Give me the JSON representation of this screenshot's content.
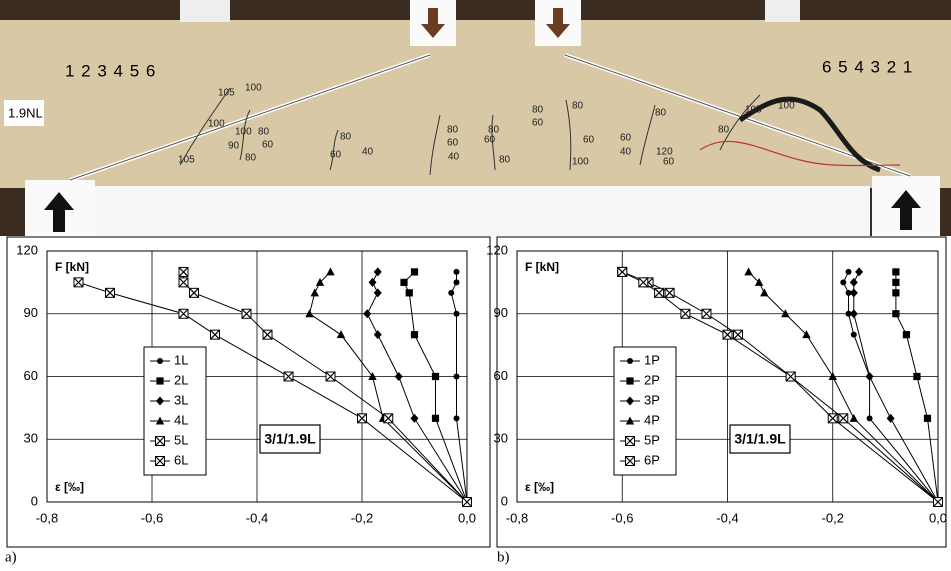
{
  "photo": {
    "left_gauges": "1 2 3 4 5 6",
    "right_gauges": "6 5 4 3 2 1",
    "specimen_label": "1.9NL",
    "crack_labels": [
      "105",
      "100",
      "100",
      "105",
      "100",
      "80",
      "90",
      "60",
      "80",
      "60",
      "80",
      "40",
      "80",
      "60",
      "40",
      "80",
      "80",
      "60",
      "80",
      "60",
      "80",
      "60",
      "100",
      "60",
      "40",
      "80",
      "120",
      "60",
      "80",
      "105",
      "100"
    ]
  },
  "panel_labels": [
    "a)",
    "b)"
  ],
  "chart_data": [
    {
      "type": "line",
      "annotation": "3/1/1.9L",
      "y_label": "F [kN]",
      "x_label": "ε [‰]",
      "xlim": [
        -0.8,
        0
      ],
      "ylim": [
        0,
        120
      ],
      "xticks": [
        {
          "value": -0.8,
          "label": "-0,8"
        },
        {
          "value": -0.6,
          "label": "-0,6"
        },
        {
          "value": -0.4,
          "label": "-0,4"
        },
        {
          "value": -0.2,
          "label": "-0,2"
        },
        {
          "value": 0,
          "label": "0,0"
        }
      ],
      "yticks": [
        0,
        30,
        60,
        90,
        120
      ],
      "grid": true,
      "series": [
        {
          "name": "1L",
          "color": "#000000",
          "marker": "circle",
          "x": [
            0,
            -0.02,
            -0.02,
            -0.02,
            -0.03,
            -0.02,
            -0.02
          ],
          "values": [
            0,
            40,
            60,
            90,
            100,
            105,
            110
          ]
        },
        {
          "name": "2L",
          "color": "#000000",
          "marker": "square",
          "x": [
            0,
            -0.06,
            -0.06,
            -0.1,
            -0.11,
            -0.12,
            -0.1
          ],
          "values": [
            0,
            40,
            60,
            80,
            100,
            105,
            110
          ]
        },
        {
          "name": "3L",
          "color": "#000000",
          "marker": "diamond",
          "x": [
            0,
            -0.1,
            -0.13,
            -0.17,
            -0.19,
            -0.17,
            -0.18,
            -0.17
          ],
          "values": [
            0,
            40,
            60,
            80,
            90,
            100,
            105,
            110
          ]
        },
        {
          "name": "4L",
          "color": "#000000",
          "marker": "triangle",
          "x": [
            0,
            -0.16,
            -0.18,
            -0.24,
            -0.3,
            -0.29,
            -0.28,
            -0.26
          ],
          "values": [
            0,
            40,
            60,
            80,
            90,
            100,
            105,
            110
          ]
        },
        {
          "name": "5L",
          "color": "#000000",
          "marker": "boxx",
          "x": [
            0,
            -0.15,
            -0.26,
            -0.38,
            -0.42,
            -0.52,
            -0.54,
            -0.54
          ],
          "values": [
            0,
            40,
            60,
            80,
            90,
            100,
            105,
            110
          ]
        },
        {
          "name": "6L",
          "color": "#000000",
          "marker": "boxx",
          "x": [
            0,
            -0.2,
            -0.34,
            -0.48,
            -0.54,
            -0.68,
            -0.74
          ],
          "values": [
            0,
            40,
            60,
            80,
            90,
            100,
            105
          ]
        }
      ]
    },
    {
      "type": "line",
      "annotation": "3/1/1.9L",
      "y_label": "F [kN]",
      "x_label": "ε [‰]",
      "xlim": [
        -0.8,
        0
      ],
      "ylim": [
        0,
        120
      ],
      "xticks": [
        {
          "value": -0.8,
          "label": "-0,8"
        },
        {
          "value": -0.6,
          "label": "-0,6"
        },
        {
          "value": -0.4,
          "label": "-0,4"
        },
        {
          "value": -0.2,
          "label": "-0,2"
        },
        {
          "value": 0,
          "label": "0,0"
        }
      ],
      "yticks": [
        0,
        30,
        60,
        90,
        120
      ],
      "grid": true,
      "series": [
        {
          "name": "1P",
          "color": "#000000",
          "marker": "circle",
          "x": [
            0,
            -0.13,
            -0.13,
            -0.16,
            -0.17,
            -0.17,
            -0.18,
            -0.17
          ],
          "values": [
            0,
            40,
            60,
            80,
            90,
            100,
            105,
            110
          ]
        },
        {
          "name": "2P",
          "color": "#000000",
          "marker": "square",
          "x": [
            0,
            -0.02,
            -0.04,
            -0.06,
            -0.08,
            -0.08,
            -0.08,
            -0.08
          ],
          "values": [
            0,
            40,
            60,
            80,
            90,
            100,
            105,
            110
          ]
        },
        {
          "name": "3P",
          "color": "#000000",
          "marker": "diamond",
          "x": [
            0,
            -0.09,
            -0.13,
            -0.16,
            -0.16,
            -0.16,
            -0.15
          ],
          "values": [
            0,
            40,
            60,
            90,
            100,
            105,
            110
          ]
        },
        {
          "name": "4P",
          "color": "#000000",
          "marker": "triangle",
          "x": [
            0,
            -0.16,
            -0.2,
            -0.25,
            -0.29,
            -0.33,
            -0.34,
            -0.36
          ],
          "values": [
            0,
            40,
            60,
            80,
            90,
            100,
            105,
            110
          ]
        },
        {
          "name": "5P",
          "color": "#000000",
          "marker": "boxx",
          "x": [
            0,
            -0.18,
            -0.28,
            -0.38,
            -0.44,
            -0.51,
            -0.55,
            -0.6
          ],
          "values": [
            0,
            40,
            60,
            80,
            90,
            100,
            105,
            110
          ]
        },
        {
          "name": "6P",
          "color": "#000000",
          "marker": "boxx",
          "x": [
            0,
            -0.2,
            -0.28,
            -0.4,
            -0.48,
            -0.53,
            -0.56,
            -0.6
          ],
          "values": [
            0,
            40,
            60,
            80,
            90,
            100,
            105,
            110
          ]
        }
      ]
    }
  ]
}
